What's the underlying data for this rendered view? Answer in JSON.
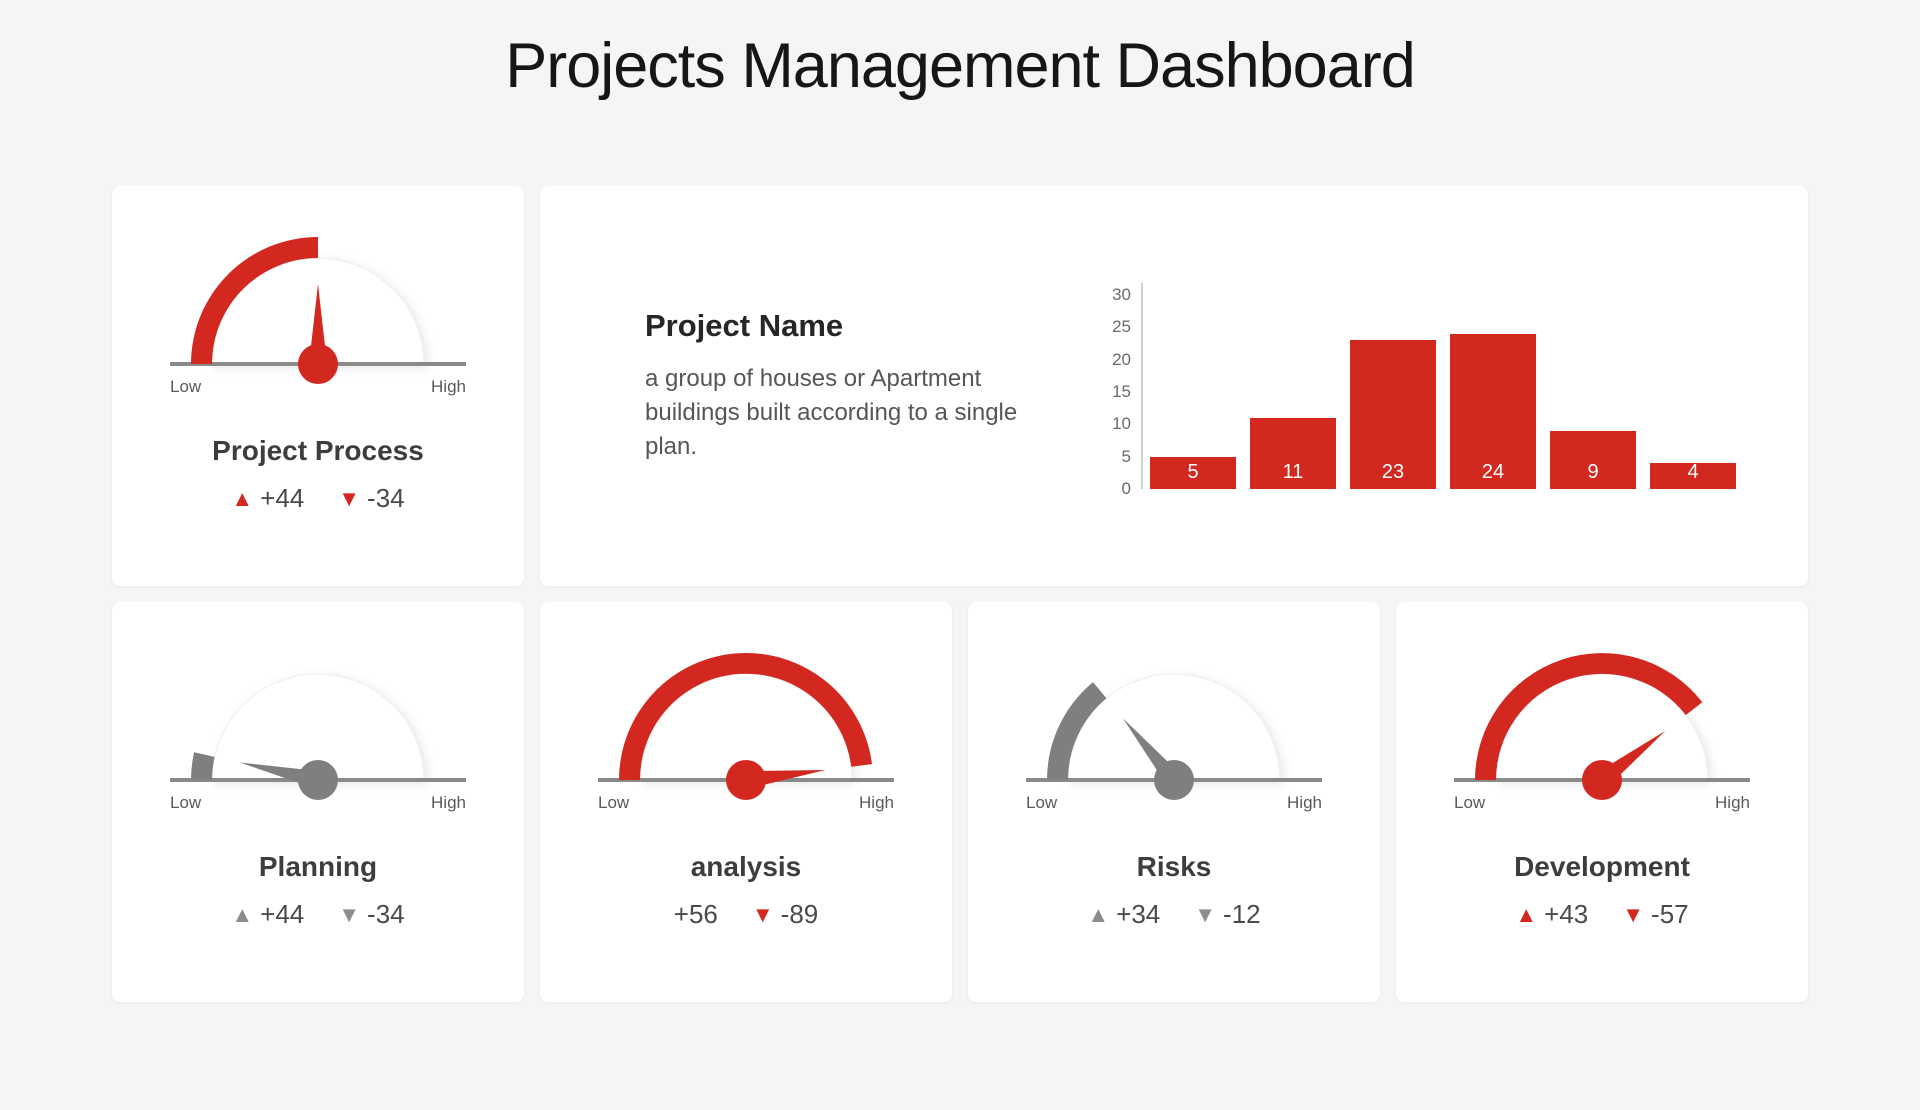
{
  "page_title": "Projects Management Dashboard",
  "theme": {
    "background": "#f5f5f6",
    "card_background": "#ffffff",
    "accent_red": "#d22820",
    "accent_gray": "#7f7f7f",
    "baseline_gray": "#8a8a8a"
  },
  "project_card": {
    "name": "Project Name",
    "description": "a group of houses or Apartment buildings built according to a single plan."
  },
  "chart_data": [
    {
      "type": "bar",
      "title": "",
      "categories": [
        "",
        "",
        "",
        "",
        "",
        ""
      ],
      "values": [
        5,
        11,
        23,
        24,
        9,
        4
      ],
      "bar_value_labels": [
        "5",
        "11",
        "23",
        "24",
        "9",
        "4"
      ],
      "yticks": [
        0,
        5,
        10,
        15,
        20,
        25,
        30
      ],
      "ylim": [
        0,
        30
      ],
      "xlabel": "",
      "ylabel": "",
      "grid": false,
      "legend": false,
      "bar_color": "#d22820",
      "value_label_color": "#ffffff"
    },
    {
      "type": "gauge",
      "title": "Project Process",
      "percent": 50,
      "color": "#d22820",
      "low_label": "Low",
      "high_label": "High",
      "position": "top-row",
      "stats": [
        {
          "arrow": "up",
          "arrow_color": "#d22820",
          "value": "+44"
        },
        {
          "arrow": "down",
          "arrow_color": "#d22820",
          "value": "-34"
        }
      ]
    },
    {
      "type": "gauge",
      "title": "Planning",
      "percent": 7,
      "color": "#7f7f7f",
      "low_label": "Low",
      "high_label": "High",
      "position": "bottom-row",
      "stats": [
        {
          "arrow": "up",
          "arrow_color": "#8c8c8c",
          "value": "+44"
        },
        {
          "arrow": "down",
          "arrow_color": "#8c8c8c",
          "value": "-34"
        }
      ]
    },
    {
      "type": "gauge",
      "title": "analysis",
      "percent": 96,
      "color": "#d22820",
      "low_label": "Low",
      "high_label": "High",
      "position": "bottom-row",
      "stats": [
        {
          "arrow": "none",
          "arrow_color": null,
          "value": "+56"
        },
        {
          "arrow": "down",
          "arrow_color": "#d22820",
          "value": "-89"
        }
      ]
    },
    {
      "type": "gauge",
      "title": "Risks",
      "percent": 28,
      "color": "#7f7f7f",
      "low_label": "Low",
      "high_label": "High",
      "position": "bottom-row",
      "stats": [
        {
          "arrow": "up",
          "arrow_color": "#8c8c8c",
          "value": "+34"
        },
        {
          "arrow": "down",
          "arrow_color": "#8c8c8c",
          "value": "-12"
        }
      ]
    },
    {
      "type": "gauge",
      "title": "Development",
      "percent": 79,
      "color": "#d22820",
      "low_label": "Low",
      "high_label": "High",
      "position": "bottom-row",
      "stats": [
        {
          "arrow": "up",
          "arrow_color": "#d22820",
          "value": "+43"
        },
        {
          "arrow": "down",
          "arrow_color": "#d22820",
          "value": "-57"
        }
      ]
    }
  ]
}
